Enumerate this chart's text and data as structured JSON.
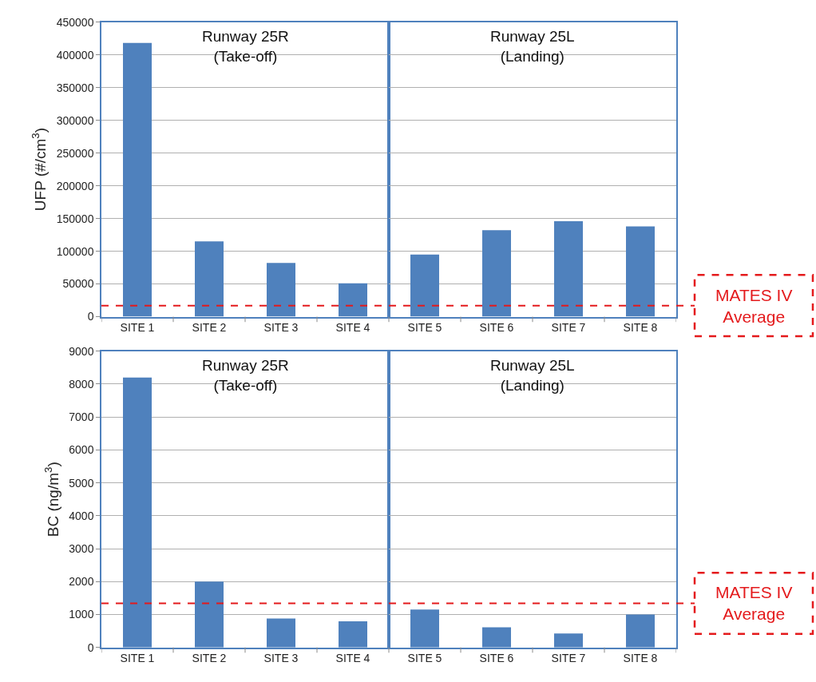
{
  "chart_data": [
    {
      "type": "bar",
      "ylabel": "UFP (#/cm$^{3}$)",
      "categories": [
        "SITE 1",
        "SITE 2",
        "SITE 3",
        "SITE 4"
      ],
      "values": [
        418000,
        115000,
        82000,
        51000
      ],
      "color": "#4f81bd",
      "ylim": [
        0,
        450000
      ],
      "yticks": [
        0,
        50000,
        100000,
        150000,
        200000,
        250000,
        300000,
        350000,
        400000,
        450000
      ],
      "grid": "y",
      "annotations": [
        "Runway 25R\n(Take-off)"
      ],
      "ref_lines": [
        {
          "axis": "y",
          "value": 17000,
          "color": "#e41a1c",
          "line_style": "dashed"
        }
      ]
    },
    {
      "type": "bar",
      "categories": [
        "SITE 5",
        "SITE 6",
        "SITE 7",
        "SITE 8"
      ],
      "values": [
        95000,
        132000,
        146000,
        138000
      ],
      "color": "#4f81bd",
      "ylim": [
        0,
        450000
      ],
      "yticks": [
        0,
        50000,
        100000,
        150000,
        200000,
        250000,
        300000,
        350000,
        400000,
        450000
      ],
      "grid": "y",
      "tick_labels": "x",
      "annotations": [
        "Runway 25L\n(Landing)"
      ],
      "ref_lines": [
        {
          "axis": "y",
          "value": 17000,
          "label": "MATES IV\nAverage",
          "color": "#e41a1c",
          "line_style": "dashed"
        }
      ]
    },
    {
      "type": "bar",
      "ylabel": "BC (ng/m$^{3}$)",
      "categories": [
        "SITE 1",
        "SITE 2",
        "SITE 3",
        "SITE 4"
      ],
      "values": [
        8200,
        2000,
        880,
        790
      ],
      "color": "#4f81bd",
      "ylim": [
        0,
        9000
      ],
      "yticks": [
        0,
        1000,
        2000,
        3000,
        4000,
        5000,
        6000,
        7000,
        8000,
        9000
      ],
      "grid": "y",
      "annotations": [
        "Runway 25R\n(Take-off)"
      ],
      "ref_lines": [
        {
          "axis": "y",
          "value": 1340,
          "color": "#e41a1c",
          "line_style": "dashed"
        }
      ]
    },
    {
      "type": "bar",
      "categories": [
        "SITE 5",
        "SITE 6",
        "SITE 7",
        "SITE 8"
      ],
      "values": [
        1150,
        610,
        420,
        1000
      ],
      "color": "#4f81bd",
      "ylim": [
        0,
        9000
      ],
      "yticks": [
        0,
        1000,
        2000,
        3000,
        4000,
        5000,
        6000,
        7000,
        8000,
        9000
      ],
      "grid": "y",
      "tick_labels": "x",
      "annotations": [
        "Runway 25L\n(Landing)"
      ],
      "ref_lines": [
        {
          "axis": "y",
          "value": 1340,
          "label": "MATES IV\nAverage",
          "color": "#e41a1c",
          "line_style": "dashed"
        }
      ]
    }
  ]
}
